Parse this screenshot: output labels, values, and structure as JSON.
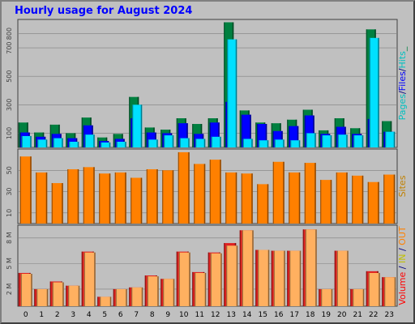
{
  "title": "Hourly usage for August 2024",
  "colors": {
    "background": "#c0c0c0",
    "pages": "#008040",
    "files": "#0000ff",
    "hits": "#00e0ff",
    "sites": "#ff8000",
    "kbytes_out": "#ffb060",
    "kbytes_in": "#e02020",
    "volume_label": "#ff0000",
    "in_label": "#c0c000",
    "out_label": "#ff8000"
  },
  "chart_data": [
    {
      "type": "bar",
      "panel": "requests",
      "categories": [
        "0",
        "1",
        "2",
        "3",
        "4",
        "5",
        "6",
        "7",
        "8",
        "9",
        "10",
        "11",
        "12",
        "13",
        "14",
        "15",
        "16",
        "17",
        "18",
        "19",
        "20",
        "21",
        "22",
        "23"
      ],
      "ylim": [
        0,
        900
      ],
      "tick_labels": [
        "100",
        "300",
        "500",
        "700",
        "800"
      ],
      "tick_values": [
        100,
        300,
        500,
        700,
        800
      ],
      "legend": [
        {
          "text": "Pages",
          "color": "#00c0c0"
        },
        {
          "text": "/",
          "color": "#000080"
        },
        {
          "text": "Files",
          "color": "#0000ff"
        },
        {
          "text": "/",
          "color": "#000080"
        },
        {
          "text": "Hits",
          "color": "#00c0c0"
        },
        {
          "text": "_",
          "color": "#008040"
        }
      ],
      "series": [
        {
          "key": "pages",
          "values": [
            175,
            105,
            160,
            100,
            210,
            70,
            95,
            355,
            140,
            125,
            205,
            165,
            205,
            880,
            260,
            175,
            170,
            195,
            265,
            120,
            205,
            135,
            830,
            185
          ]
        },
        {
          "key": "files",
          "values": [
            105,
            75,
            95,
            65,
            155,
            45,
            60,
            205,
            105,
            100,
            170,
            95,
            175,
            320,
            230,
            165,
            115,
            150,
            225,
            95,
            145,
            95,
            200,
            110
          ]
        },
        {
          "key": "hits",
          "values": [
            80,
            55,
            65,
            40,
            90,
            35,
            40,
            300,
            55,
            85,
            65,
            60,
            75,
            760,
            60,
            50,
            55,
            50,
            100,
            85,
            90,
            85,
            770,
            110
          ]
        }
      ]
    },
    {
      "type": "bar",
      "panel": "sites",
      "categories": [
        "0",
        "1",
        "2",
        "3",
        "4",
        "5",
        "6",
        "7",
        "8",
        "9",
        "10",
        "11",
        "12",
        "13",
        "14",
        "15",
        "16",
        "17",
        "18",
        "19",
        "20",
        "21",
        "22",
        "23"
      ],
      "ylim": [
        0,
        70
      ],
      "tick_labels": [
        "10",
        "30",
        "50"
      ],
      "tick_values": [
        10,
        30,
        50
      ],
      "legend": [
        {
          "text": "Sites",
          "color": "#c08000"
        }
      ],
      "series": [
        {
          "key": "sites",
          "values": [
            63,
            48,
            38,
            51,
            53,
            47,
            48,
            43,
            51,
            50,
            67,
            56,
            60,
            48,
            47,
            37,
            58,
            48,
            57,
            41,
            48,
            45,
            39,
            46
          ]
        }
      ]
    },
    {
      "type": "bar",
      "panel": "volume",
      "categories": [
        "0",
        "1",
        "2",
        "3",
        "4",
        "5",
        "6",
        "7",
        "8",
        "9",
        "10",
        "11",
        "12",
        "13",
        "14",
        "15",
        "16",
        "17",
        "18",
        "19",
        "20",
        "21",
        "22",
        "23"
      ],
      "ylim": [
        0,
        9.5
      ],
      "tick_labels": [
        "2 M",
        "5 M",
        "8 M"
      ],
      "tick_values": [
        2,
        5,
        8
      ],
      "legend": [
        {
          "text": "Volume",
          "color": "#ff0000"
        },
        {
          "text": " / ",
          "color": "#000080"
        },
        {
          "text": "IN",
          "color": "#c0c000"
        },
        {
          "text": " / ",
          "color": "#000080"
        },
        {
          "text": "OUT",
          "color": "#ff8000"
        }
      ],
      "series": [
        {
          "key": "kbytes_in",
          "values": [
            3.9,
            2.0,
            2.9,
            2.4,
            6.4,
            1.1,
            2.0,
            2.2,
            3.6,
            3.2,
            6.4,
            4.0,
            6.3,
            7.4,
            8.9,
            6.6,
            6.5,
            6.5,
            9.0,
            2.0,
            6.5,
            2.0,
            4.1,
            3.4
          ]
        },
        {
          "key": "kbytes_out",
          "values": [
            3.8,
            2.0,
            2.8,
            2.4,
            6.3,
            1.1,
            2.0,
            2.2,
            3.5,
            3.2,
            6.3,
            3.9,
            6.2,
            7.1,
            8.9,
            6.6,
            6.5,
            6.5,
            9.0,
            2.0,
            6.5,
            2.0,
            3.9,
            3.4
          ]
        }
      ]
    }
  ]
}
